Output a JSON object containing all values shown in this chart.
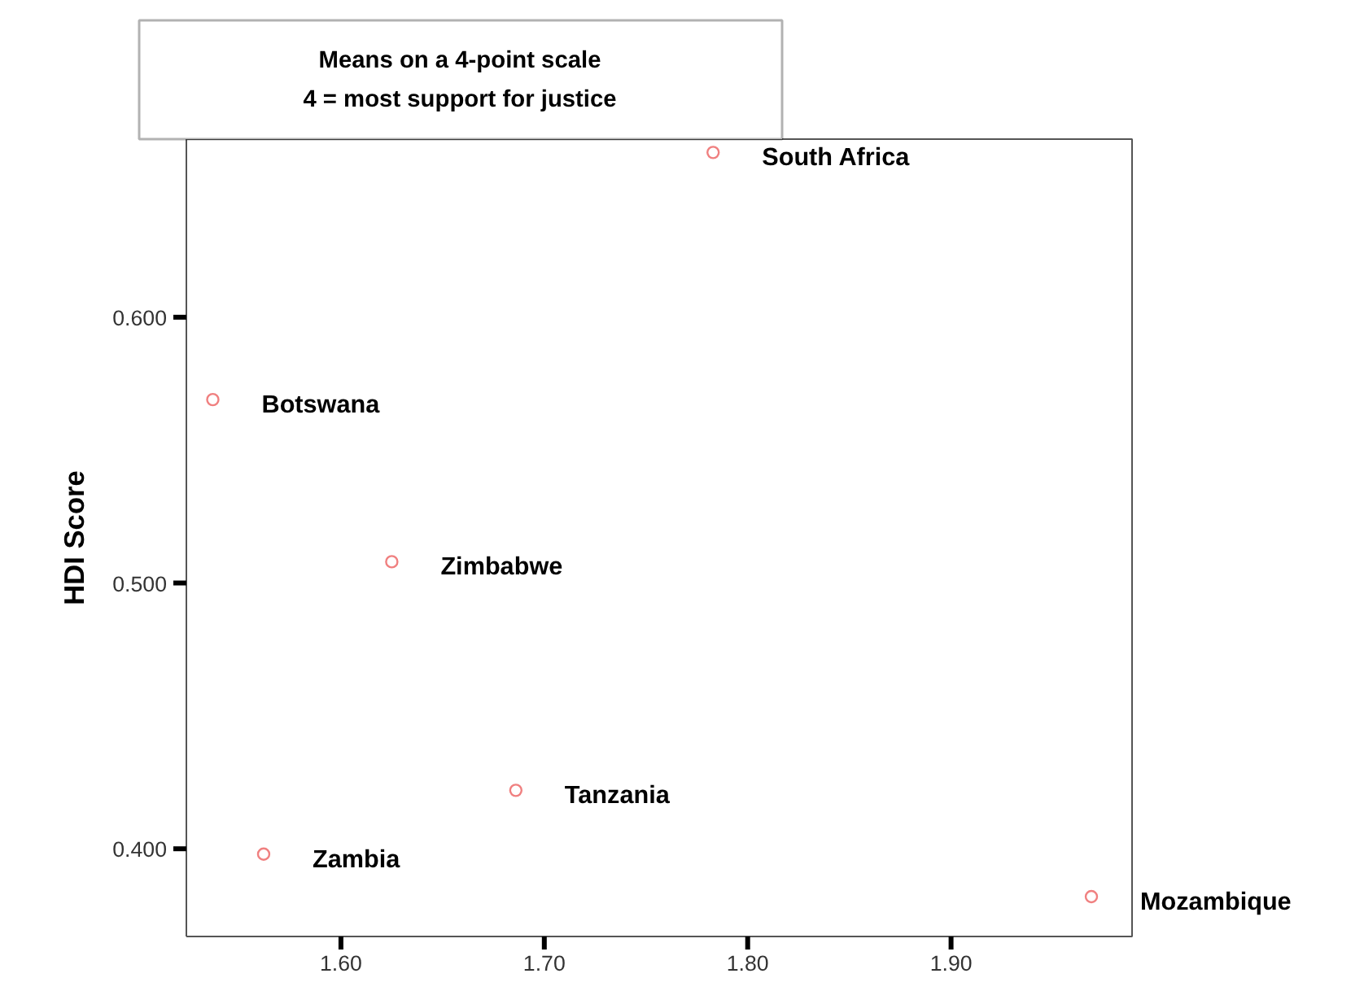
{
  "chart_data": {
    "type": "scatter",
    "title": "Means on a 4-point scale",
    "subtitle": "4 = most support for justice",
    "ylabel": "HDI Score",
    "x": [
      1.783,
      1.537,
      1.625,
      1.686,
      1.562,
      1.969
    ],
    "series": [
      {
        "color": "#f08080",
        "values": [
          0.662,
          0.569,
          0.508,
          0.422,
          0.398,
          0.382
        ]
      }
    ],
    "annotations": [
      {
        "text": "South Africa",
        "x": 1.783,
        "y": 0.662
      },
      {
        "text": "Botswana",
        "x": 1.537,
        "y": 0.569
      },
      {
        "text": "Zimbabwe",
        "x": 1.625,
        "y": 0.508
      },
      {
        "text": "Tanzania",
        "x": 1.686,
        "y": 0.422
      },
      {
        "text": "Zambia",
        "x": 1.562,
        "y": 0.398
      },
      {
        "text": "Mozambique",
        "x": 1.969,
        "y": 0.382
      }
    ],
    "xlim": [
      1.524,
      1.989
    ],
    "ylim": [
      0.367,
      0.667
    ],
    "xticks": [
      {
        "value": 1.6,
        "label": "1.60"
      },
      {
        "value": 1.7,
        "label": "1.70"
      },
      {
        "value": 1.8,
        "label": "1.80"
      },
      {
        "value": 1.9,
        "label": "1.90"
      }
    ],
    "yticks": [
      {
        "value": 0.4,
        "label": "0.400"
      },
      {
        "value": 0.5,
        "label": "0.500"
      },
      {
        "value": 0.6,
        "label": "0.600"
      }
    ],
    "grid": false,
    "marker": "circle"
  }
}
